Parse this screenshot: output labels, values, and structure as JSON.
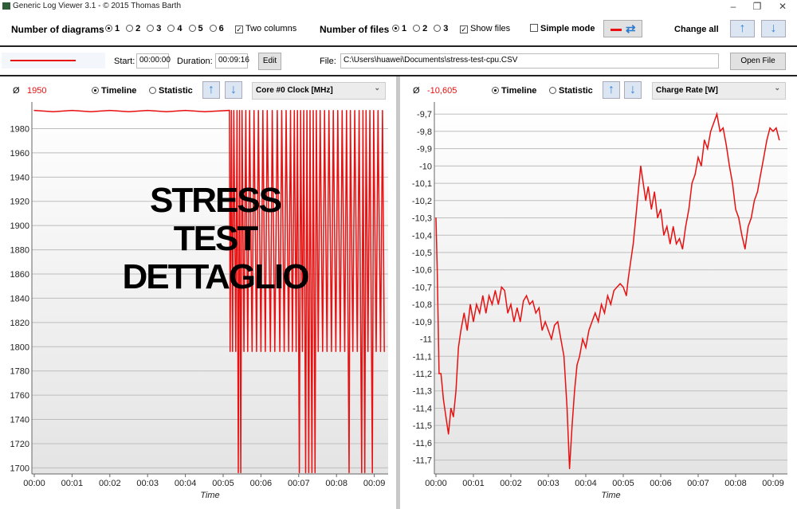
{
  "window": {
    "title": "Generic Log Viewer 3.1 - © 2015 Thomas Barth",
    "minimize": "–",
    "restore": "❐",
    "close": "✕"
  },
  "toolbar": {
    "diagrams_label": "Number of diagrams",
    "diagram_options": [
      "1",
      "2",
      "3",
      "4",
      "5",
      "6"
    ],
    "diagram_selected": "1",
    "two_columns_label": "Two columns",
    "two_columns_checked": true,
    "files_label": "Number of files",
    "file_options": [
      "1",
      "2",
      "3"
    ],
    "file_selected": "1",
    "show_files_label": "Show files",
    "show_files_checked": true,
    "simple_mode_label": "Simple mode",
    "simple_mode_checked": false,
    "change_all_label": "Change all"
  },
  "file_row": {
    "start_label": "Start:",
    "start_value": "00:00:00",
    "duration_label": "Duration:",
    "duration_value": "00:09:16",
    "edit_label": "Edit",
    "file_label": "File:",
    "file_value": "C:\\Users\\huawei\\Documents\\stress-test-cpu.CSV",
    "open_label": "Open File",
    "line_color": "#e81010"
  },
  "overlay_text": "STRESS TEST DETTAGLIO",
  "panels": [
    {
      "avg_symbol": "Ø",
      "avg_value": "1950",
      "timeline_label": "Timeline",
      "statistic_label": "Statistic",
      "mode": "Timeline",
      "channel": "Core #0 Clock [MHz]"
    },
    {
      "avg_symbol": "Ø",
      "avg_value": "-10,605",
      "timeline_label": "Timeline",
      "statistic_label": "Statistic",
      "mode": "Timeline",
      "channel": "Charge Rate [W]"
    }
  ],
  "chart_data": [
    {
      "type": "line",
      "xlabel": "Time",
      "ylabel": "",
      "color": "#e81010",
      "grid": true,
      "xticks": [
        "00:00",
        "00:01",
        "00:02",
        "00:03",
        "00:04",
        "00:05",
        "00:06",
        "00:07",
        "00:08",
        "00:09"
      ],
      "yticks": [
        "1700",
        "1720",
        "1740",
        "1760",
        "1780",
        "1800",
        "1820",
        "1840",
        "1860",
        "1880",
        "1900",
        "1920",
        "1940",
        "1960",
        "1980"
      ],
      "ylim": [
        1695,
        2002
      ],
      "xlim": [
        "00:00",
        "09:16"
      ],
      "points": [
        [
          "00:00",
          1995
        ],
        [
          "00:30",
          1994
        ],
        [
          "01:00",
          1995
        ],
        [
          "01:30",
          1994
        ],
        [
          "02:00",
          1995
        ],
        [
          "02:30",
          1994
        ],
        [
          "03:00",
          1995
        ],
        [
          "03:30",
          1994
        ],
        [
          "04:00",
          1995
        ],
        [
          "04:30",
          1994
        ],
        [
          "05:10",
          1995
        ],
        [
          "05:11",
          1796
        ],
        [
          "05:13",
          1995
        ],
        [
          "05:15",
          1796
        ],
        [
          "05:17",
          1995
        ],
        [
          "05:20",
          1796
        ],
        [
          "05:22",
          1995
        ],
        [
          "05:24",
          1696
        ],
        [
          "05:26",
          1995
        ],
        [
          "05:28",
          1696
        ],
        [
          "05:30",
          1995
        ],
        [
          "05:33",
          1796
        ],
        [
          "05:36",
          1995
        ],
        [
          "05:39",
          1796
        ],
        [
          "05:42",
          1995
        ],
        [
          "05:46",
          1796
        ],
        [
          "05:49",
          1995
        ],
        [
          "05:53",
          1796
        ],
        [
          "05:56",
          1995
        ],
        [
          "06:00",
          1796
        ],
        [
          "06:03",
          1995
        ],
        [
          "06:07",
          1796
        ],
        [
          "06:10",
          1995
        ],
        [
          "06:15",
          1796
        ],
        [
          "06:18",
          1995
        ],
        [
          "06:22",
          1796
        ],
        [
          "06:26",
          1995
        ],
        [
          "06:30",
          1796
        ],
        [
          "06:33",
          1995
        ],
        [
          "06:37",
          1796
        ],
        [
          "06:40",
          1995
        ],
        [
          "06:44",
          1796
        ],
        [
          "06:47",
          1995
        ],
        [
          "06:50",
          1796
        ],
        [
          "06:53",
          1995
        ],
        [
          "06:56",
          1796
        ],
        [
          "06:58",
          1995
        ],
        [
          "07:01",
          1696
        ],
        [
          "07:03",
          1995
        ],
        [
          "07:06",
          1796
        ],
        [
          "07:08",
          1995
        ],
        [
          "07:11",
          1696
        ],
        [
          "07:13",
          1995
        ],
        [
          "07:16",
          1696
        ],
        [
          "07:18",
          1995
        ],
        [
          "07:21",
          1696
        ],
        [
          "07:23",
          1995
        ],
        [
          "07:26",
          1696
        ],
        [
          "07:28",
          1995
        ],
        [
          "07:31",
          1796
        ],
        [
          "07:34",
          1995
        ],
        [
          "07:38",
          1796
        ],
        [
          "07:41",
          1995
        ],
        [
          "07:45",
          1796
        ],
        [
          "07:48",
          1995
        ],
        [
          "07:52",
          1796
        ],
        [
          "07:55",
          1995
        ],
        [
          "07:59",
          1796
        ],
        [
          "08:02",
          1995
        ],
        [
          "08:06",
          1796
        ],
        [
          "08:09",
          1995
        ],
        [
          "08:13",
          1796
        ],
        [
          "08:16",
          1995
        ],
        [
          "08:20",
          1696
        ],
        [
          "08:22",
          1995
        ],
        [
          "08:26",
          1796
        ],
        [
          "08:29",
          1995
        ],
        [
          "08:33",
          1796
        ],
        [
          "08:36",
          1995
        ],
        [
          "08:40",
          1696
        ],
        [
          "08:42",
          1995
        ],
        [
          "08:45",
          1696
        ],
        [
          "08:47",
          1995
        ],
        [
          "08:50",
          1796
        ],
        [
          "08:53",
          1995
        ],
        [
          "08:57",
          1696
        ],
        [
          "08:59",
          1995
        ],
        [
          "09:03",
          1796
        ],
        [
          "09:06",
          1995
        ],
        [
          "09:10",
          1796
        ],
        [
          "09:13",
          1995
        ],
        [
          "09:16",
          1796
        ]
      ]
    },
    {
      "type": "line",
      "xlabel": "Time",
      "ylabel": "",
      "color": "#e81010",
      "grid": true,
      "xticks": [
        "00:00",
        "00:01",
        "00:02",
        "00:03",
        "00:04",
        "00:05",
        "00:06",
        "00:07",
        "00:08",
        "00:09"
      ],
      "yticks": [
        "-9,7",
        "-9,8",
        "-9,9",
        "-10",
        "-10,1",
        "-10,2",
        "-10,3",
        "-10,4",
        "-10,5",
        "-10,6",
        "-10,7",
        "-10,8",
        "-10,9",
        "-11",
        "-11,1",
        "-11,2",
        "-11,3",
        "-11,4",
        "-11,5",
        "-11,6",
        "-11,7"
      ],
      "ylim": [
        -11.78,
        -9.63
      ],
      "xlim": [
        "00:00",
        "09:16"
      ],
      "points": [
        [
          "00:00",
          -10.3
        ],
        [
          "00:02",
          -10.6
        ],
        [
          "00:05",
          -11.2
        ],
        [
          "00:08",
          -11.2
        ],
        [
          "00:12",
          -11.35
        ],
        [
          "00:16",
          -11.45
        ],
        [
          "00:20",
          -11.55
        ],
        [
          "00:24",
          -11.4
        ],
        [
          "00:28",
          -11.45
        ],
        [
          "00:32",
          -11.3
        ],
        [
          "00:36",
          -11.05
        ],
        [
          "00:40",
          -10.95
        ],
        [
          "00:45",
          -10.85
        ],
        [
          "00:50",
          -10.95
        ],
        [
          "00:55",
          -10.8
        ],
        [
          "01:00",
          -10.9
        ],
        [
          "01:05",
          -10.8
        ],
        [
          "01:10",
          -10.85
        ],
        [
          "01:15",
          -10.75
        ],
        [
          "01:20",
          -10.85
        ],
        [
          "01:25",
          -10.75
        ],
        [
          "01:30",
          -10.8
        ],
        [
          "01:35",
          -10.72
        ],
        [
          "01:40",
          -10.8
        ],
        [
          "01:45",
          -10.7
        ],
        [
          "01:50",
          -10.72
        ],
        [
          "01:55",
          -10.85
        ],
        [
          "02:00",
          -10.8
        ],
        [
          "02:05",
          -10.9
        ],
        [
          "02:10",
          -10.82
        ],
        [
          "02:15",
          -10.9
        ],
        [
          "02:20",
          -10.78
        ],
        [
          "02:25",
          -10.75
        ],
        [
          "02:30",
          -10.8
        ],
        [
          "02:35",
          -10.78
        ],
        [
          "02:40",
          -10.85
        ],
        [
          "02:45",
          -10.82
        ],
        [
          "02:50",
          -10.95
        ],
        [
          "02:55",
          -10.9
        ],
        [
          "03:00",
          -10.95
        ],
        [
          "03:05",
          -11.0
        ],
        [
          "03:10",
          -10.92
        ],
        [
          "03:15",
          -10.9
        ],
        [
          "03:20",
          -11.0
        ],
        [
          "03:25",
          -11.1
        ],
        [
          "03:30",
          -11.4
        ],
        [
          "03:34",
          -11.75
        ],
        [
          "03:38",
          -11.5
        ],
        [
          "03:42",
          -11.3
        ],
        [
          "03:46",
          -11.15
        ],
        [
          "03:50",
          -11.1
        ],
        [
          "03:55",
          -11.0
        ],
        [
          "04:00",
          -11.05
        ],
        [
          "04:05",
          -10.95
        ],
        [
          "04:10",
          -10.9
        ],
        [
          "04:15",
          -10.85
        ],
        [
          "04:20",
          -10.9
        ],
        [
          "04:25",
          -10.8
        ],
        [
          "04:30",
          -10.85
        ],
        [
          "04:35",
          -10.75
        ],
        [
          "04:40",
          -10.8
        ],
        [
          "04:45",
          -10.72
        ],
        [
          "04:50",
          -10.7
        ],
        [
          "04:55",
          -10.68
        ],
        [
          "05:00",
          -10.7
        ],
        [
          "05:05",
          -10.75
        ],
        [
          "05:08",
          -10.65
        ],
        [
          "05:12",
          -10.55
        ],
        [
          "05:16",
          -10.45
        ],
        [
          "05:20",
          -10.3
        ],
        [
          "05:24",
          -10.15
        ],
        [
          "05:28",
          -10.0
        ],
        [
          "05:32",
          -10.1
        ],
        [
          "05:36",
          -10.2
        ],
        [
          "05:40",
          -10.12
        ],
        [
          "05:45",
          -10.25
        ],
        [
          "05:50",
          -10.15
        ],
        [
          "05:55",
          -10.3
        ],
        [
          "06:00",
          -10.25
        ],
        [
          "06:05",
          -10.4
        ],
        [
          "06:10",
          -10.35
        ],
        [
          "06:15",
          -10.45
        ],
        [
          "06:20",
          -10.35
        ],
        [
          "06:25",
          -10.45
        ],
        [
          "06:30",
          -10.42
        ],
        [
          "06:35",
          -10.48
        ],
        [
          "06:40",
          -10.35
        ],
        [
          "06:45",
          -10.25
        ],
        [
          "06:50",
          -10.1
        ],
        [
          "06:55",
          -10.05
        ],
        [
          "07:00",
          -9.95
        ],
        [
          "07:05",
          -10.0
        ],
        [
          "07:10",
          -9.85
        ],
        [
          "07:15",
          -9.9
        ],
        [
          "07:20",
          -9.8
        ],
        [
          "07:25",
          -9.75
        ],
        [
          "07:30",
          -9.7
        ],
        [
          "07:35",
          -9.8
        ],
        [
          "07:40",
          -9.78
        ],
        [
          "07:45",
          -9.88
        ],
        [
          "07:50",
          -10.0
        ],
        [
          "07:55",
          -10.1
        ],
        [
          "08:00",
          -10.25
        ],
        [
          "08:05",
          -10.3
        ],
        [
          "08:10",
          -10.4
        ],
        [
          "08:15",
          -10.48
        ],
        [
          "08:20",
          -10.35
        ],
        [
          "08:25",
          -10.3
        ],
        [
          "08:30",
          -10.2
        ],
        [
          "08:35",
          -10.15
        ],
        [
          "08:40",
          -10.05
        ],
        [
          "08:45",
          -9.95
        ],
        [
          "08:50",
          -9.85
        ],
        [
          "08:55",
          -9.78
        ],
        [
          "09:00",
          -9.8
        ],
        [
          "09:05",
          -9.78
        ],
        [
          "09:10",
          -9.85
        ]
      ]
    }
  ]
}
